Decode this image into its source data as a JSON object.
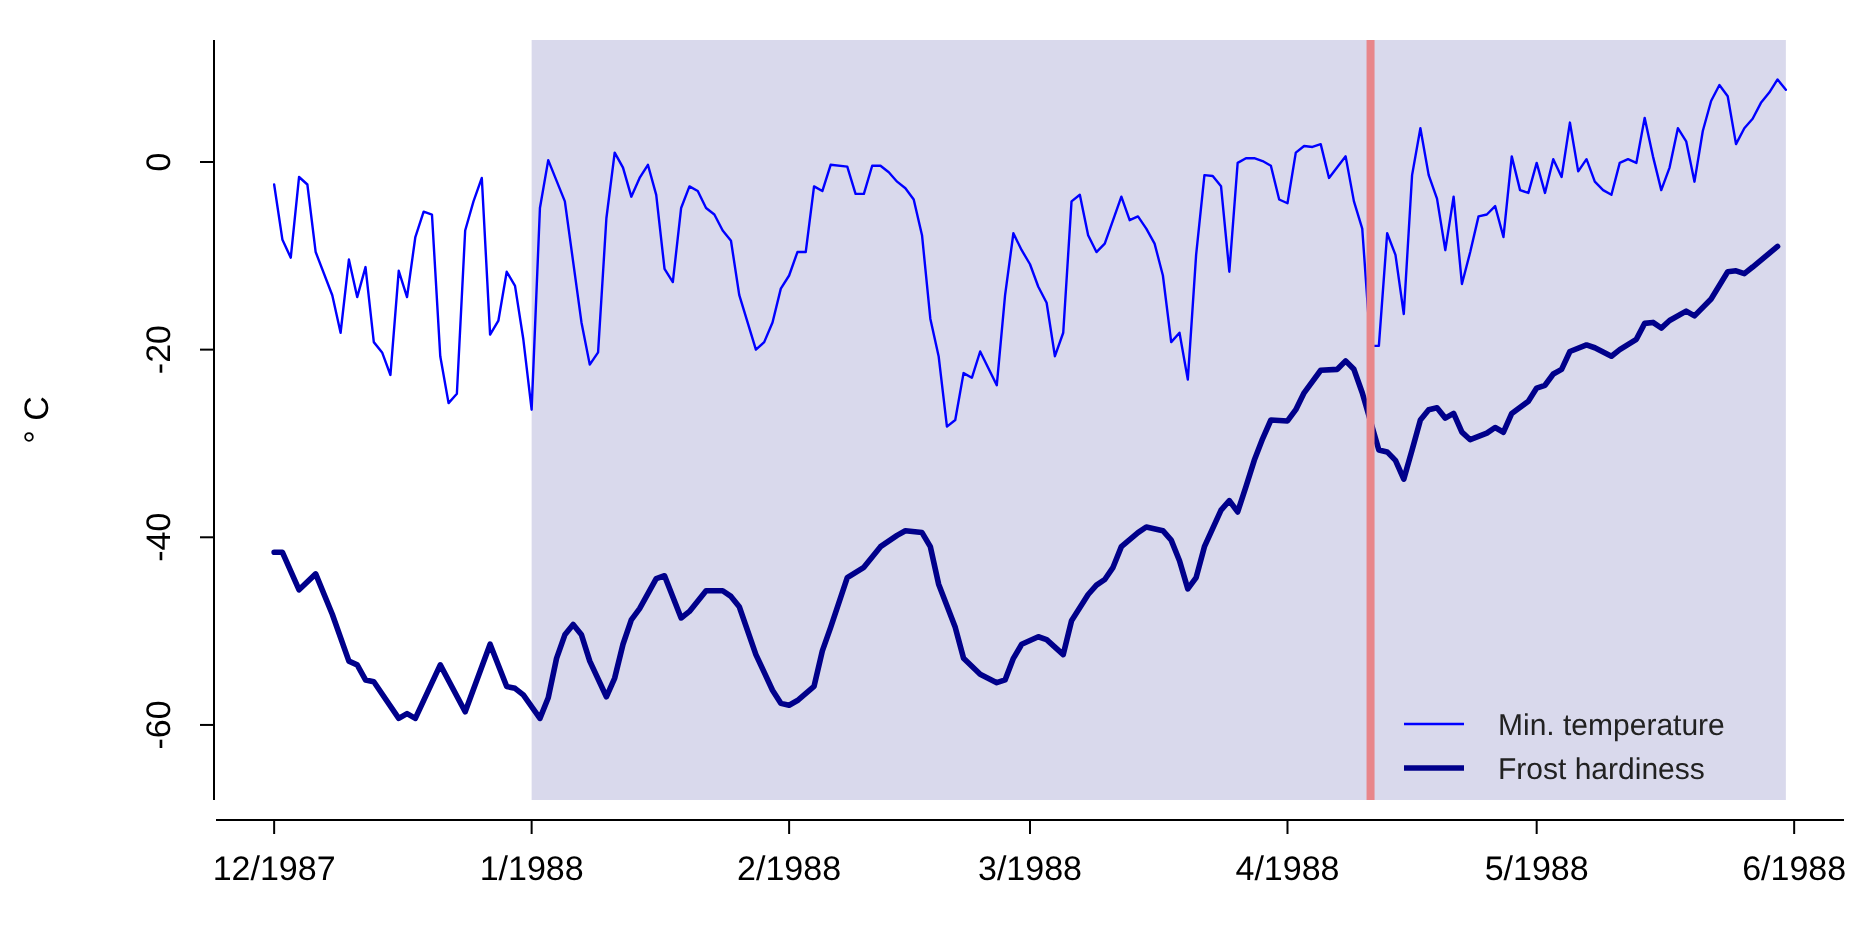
{
  "chart_data": {
    "type": "line",
    "ylabel": "° C",
    "xlim": [
      "1987-11-24",
      "1988-06-07"
    ],
    "ylim": [
      -68,
      13
    ],
    "xticks": [
      {
        "value": "1987-12-01",
        "label": "12/1987"
      },
      {
        "value": "1988-01-01",
        "label": "1/1988"
      },
      {
        "value": "1988-02-01",
        "label": "2/1988"
      },
      {
        "value": "1988-03-01",
        "label": "3/1988"
      },
      {
        "value": "1988-04-01",
        "label": "4/1988"
      },
      {
        "value": "1988-05-01",
        "label": "5/1988"
      },
      {
        "value": "1988-06-01",
        "label": "6/1988"
      }
    ],
    "yticks": [
      -60,
      -40,
      -20,
      0
    ],
    "bands": [
      {
        "axis": "x",
        "from": "1988-01-01",
        "to": "1988-05-31",
        "color": "#d9d9ec"
      }
    ],
    "ref_lines": [
      {
        "axis": "x",
        "value": "1988-04-11",
        "color": "#e8868a"
      }
    ],
    "legend": "bottom right",
    "series": [
      {
        "name": "Min. temperature",
        "color": "#0000ff",
        "x": [
          "1987-12-01",
          "1987-12-02",
          "1987-12-03",
          "1987-12-04",
          "1987-12-05",
          "1987-12-06",
          "1987-12-08",
          "1987-12-09",
          "1987-12-10",
          "1987-12-11",
          "1987-12-12",
          "1987-12-13",
          "1987-12-14",
          "1987-12-15",
          "1987-12-16",
          "1987-12-17",
          "1987-12-18",
          "1987-12-19",
          "1987-12-20",
          "1987-12-21",
          "1987-12-22",
          "1987-12-23",
          "1987-12-24",
          "1987-12-25",
          "1987-12-26",
          "1987-12-27",
          "1987-12-28",
          "1987-12-29",
          "1987-12-30",
          "1987-12-31",
          "1988-01-01",
          "1988-01-02",
          "1988-01-03",
          "1988-01-05",
          "1988-01-07",
          "1988-01-08",
          "1988-01-09",
          "1988-01-10",
          "1988-01-11",
          "1988-01-12",
          "1988-01-13",
          "1988-01-14",
          "1988-01-15",
          "1988-01-16",
          "1988-01-17",
          "1988-01-18",
          "1988-01-19",
          "1988-01-20",
          "1988-01-21",
          "1988-01-22",
          "1988-01-23",
          "1988-01-24",
          "1988-01-25",
          "1988-01-26",
          "1988-01-28",
          "1988-01-29",
          "1988-01-30",
          "1988-01-31",
          "1988-02-01",
          "1988-02-02",
          "1988-02-03",
          "1988-02-04",
          "1988-02-05",
          "1988-02-06",
          "1988-02-08",
          "1988-02-09",
          "1988-02-10",
          "1988-02-11",
          "1988-02-12",
          "1988-02-13",
          "1988-02-14",
          "1988-02-15",
          "1988-02-16",
          "1988-02-17",
          "1988-02-18",
          "1988-02-19",
          "1988-02-20",
          "1988-02-21",
          "1988-02-22",
          "1988-02-23",
          "1988-02-24",
          "1988-02-26",
          "1988-02-27",
          "1988-02-28",
          "1988-02-29",
          "1988-03-01",
          "1988-03-02",
          "1988-03-03",
          "1988-03-04",
          "1988-03-05",
          "1988-03-06",
          "1988-03-07",
          "1988-03-08",
          "1988-03-09",
          "1988-03-10",
          "1988-03-12",
          "1988-03-13",
          "1988-03-14",
          "1988-03-15",
          "1988-03-16",
          "1988-03-17",
          "1988-03-18",
          "1988-03-19",
          "1988-03-20",
          "1988-03-21",
          "1988-03-22",
          "1988-03-23",
          "1988-03-24",
          "1988-03-25",
          "1988-03-26",
          "1988-03-27",
          "1988-03-28",
          "1988-03-29",
          "1988-03-30",
          "1988-03-31",
          "1988-04-01",
          "1988-04-02",
          "1988-04-03",
          "1988-04-04",
          "1988-04-05",
          "1988-04-06",
          "1988-04-08",
          "1988-04-09",
          "1988-04-10",
          "1988-04-11",
          "1988-04-12",
          "1988-04-13",
          "1988-04-14",
          "1988-04-15",
          "1988-04-16",
          "1988-04-17",
          "1988-04-18",
          "1988-04-19",
          "1988-04-20",
          "1988-04-21",
          "1988-04-22",
          "1988-04-23",
          "1988-04-24",
          "1988-04-25",
          "1988-04-26",
          "1988-04-27",
          "1988-04-28",
          "1988-04-29",
          "1988-04-30",
          "1988-05-01",
          "1988-05-02",
          "1988-05-03",
          "1988-05-04",
          "1988-05-05",
          "1988-05-06",
          "1988-05-07",
          "1988-05-08",
          "1988-05-09",
          "1988-05-10",
          "1988-05-11",
          "1988-05-12",
          "1988-05-13",
          "1988-05-14",
          "1988-05-15",
          "1988-05-16",
          "1988-05-17",
          "1988-05-18",
          "1988-05-19",
          "1988-05-20",
          "1988-05-21",
          "1988-05-22",
          "1988-05-23",
          "1988-05-24",
          "1988-05-25",
          "1988-05-26",
          "1988-05-27",
          "1988-05-28",
          "1988-05-29",
          "1988-05-30",
          "1988-05-31"
        ],
        "values": [
          -2.4,
          -8.3,
          -10.2,
          -1.6,
          -2.4,
          -9.6,
          -14.2,
          -18.2,
          -10.4,
          -14.4,
          -11.2,
          -19.2,
          -20.3,
          -22.7,
          -11.6,
          -14.4,
          -8.0,
          -5.3,
          -5.6,
          -20.7,
          -25.7,
          -24.7,
          -7.3,
          -4.2,
          -1.7,
          -18.4,
          -16.9,
          -11.7,
          -13.2,
          -18.9,
          -26.4,
          -4.9,
          0.2,
          -4.2,
          -17.1,
          -21.6,
          -20.3,
          -6.0,
          1.0,
          -0.6,
          -3.7,
          -1.7,
          -0.3,
          -3.5,
          -11.4,
          -12.8,
          -4.9,
          -2.6,
          -3.1,
          -4.9,
          -5.6,
          -7.3,
          -8.4,
          -14.2,
          -20.0,
          -19.2,
          -17.1,
          -13.5,
          -12.1,
          -9.6,
          -9.6,
          -2.6,
          -3.1,
          -0.3,
          -0.5,
          -3.4,
          -3.4,
          -0.4,
          -0.4,
          -1.1,
          -2.1,
          -2.8,
          -4.0,
          -7.8,
          -16.7,
          -20.7,
          -28.2,
          -27.5,
          -22.5,
          -23.0,
          -20.2,
          -23.8,
          -14.2,
          -7.6,
          -9.4,
          -10.9,
          -13.3,
          -15.0,
          -20.7,
          -18.2,
          -4.2,
          -3.5,
          -7.8,
          -9.6,
          -8.7,
          -3.7,
          -6.2,
          -5.8,
          -7.1,
          -8.7,
          -12.1,
          -19.2,
          -18.2,
          -23.2,
          -9.9,
          -1.4,
          -1.5,
          -2.6,
          -11.7,
          -0.1,
          0.4,
          0.4,
          0.1,
          -0.4,
          -4.0,
          -4.4,
          1.0,
          1.7,
          1.6,
          1.9,
          -1.7,
          0.6,
          -4.2,
          -7.1,
          -19.6,
          -19.6,
          -7.6,
          -9.9,
          -16.2,
          -1.4,
          3.6,
          -1.4,
          -3.9,
          -9.4,
          -3.7,
          -13.0,
          -9.6,
          -5.8,
          -5.6,
          -4.7,
          -8.0,
          0.6,
          -3.0,
          -3.3,
          -0.1,
          -3.3,
          0.3,
          -1.6,
          4.2,
          -1.0,
          0.3,
          -2.1,
          -3.0,
          -3.5,
          -0.1,
          0.3,
          -0.1,
          4.7,
          0.6,
          -3.0,
          -0.6,
          3.6,
          2.2,
          -2.1,
          3.3,
          6.5,
          8.2,
          7.0,
          1.9,
          3.6,
          4.6,
          6.3,
          7.4,
          8.8,
          7.7
        ]
      },
      {
        "name": "Frost hardiness",
        "color": "#00008b",
        "x": [
          "1987-12-01",
          "1987-12-02",
          "1987-12-04",
          "1987-12-06",
          "1987-12-08",
          "1987-12-10",
          "1987-12-11",
          "1987-12-12",
          "1987-12-13",
          "1987-12-16",
          "1987-12-17",
          "1987-12-18",
          "1987-12-21",
          "1987-12-24",
          "1987-12-27",
          "1987-12-29",
          "1987-12-30",
          "1987-12-31",
          "1988-01-02",
          "1988-01-03",
          "1988-01-04",
          "1988-01-05",
          "1988-01-06",
          "1988-01-07",
          "1988-01-08",
          "1988-01-10",
          "1988-01-11",
          "1988-01-12",
          "1988-01-13",
          "1988-01-14",
          "1988-01-16",
          "1988-01-17",
          "1988-01-19",
          "1988-01-20",
          "1988-01-22",
          "1988-01-24",
          "1988-01-25",
          "1988-01-26",
          "1988-01-28",
          "1988-01-30",
          "1988-01-31",
          "1988-02-01",
          "1988-02-02",
          "1988-02-04",
          "1988-02-05",
          "1988-02-06",
          "1988-02-08",
          "1988-02-10",
          "1988-02-12",
          "1988-02-14",
          "1988-02-15",
          "1988-02-17",
          "1988-02-18",
          "1988-02-19",
          "1988-02-21",
          "1988-02-22",
          "1988-02-24",
          "1988-02-26",
          "1988-02-27",
          "1988-02-28",
          "1988-02-29",
          "1988-03-02",
          "1988-03-03",
          "1988-03-05",
          "1988-03-06",
          "1988-03-08",
          "1988-03-09",
          "1988-03-10",
          "1988-03-11",
          "1988-03-12",
          "1988-03-14",
          "1988-03-15",
          "1988-03-17",
          "1988-03-18",
          "1988-03-19",
          "1988-03-20",
          "1988-03-21",
          "1988-03-22",
          "1988-03-24",
          "1988-03-25",
          "1988-03-26",
          "1988-03-27",
          "1988-03-28",
          "1988-03-29",
          "1988-03-30",
          "1988-04-01",
          "1988-04-02",
          "1988-04-03",
          "1988-04-05",
          "1988-04-07",
          "1988-04-08",
          "1988-04-09",
          "1988-04-10",
          "1988-04-12",
          "1988-04-13",
          "1988-04-14",
          "1988-04-15",
          "1988-04-16",
          "1988-04-17",
          "1988-04-18",
          "1988-04-19",
          "1988-04-20",
          "1988-04-21",
          "1988-04-22",
          "1988-04-23",
          "1988-04-25",
          "1988-04-26",
          "1988-04-27",
          "1988-04-28",
          "1988-04-30",
          "1988-05-01",
          "1988-05-02",
          "1988-05-03",
          "1988-05-04",
          "1988-05-05",
          "1988-05-07",
          "1988-05-08",
          "1988-05-10",
          "1988-05-11",
          "1988-05-13",
          "1988-05-14",
          "1988-05-15",
          "1988-05-16",
          "1988-05-17",
          "1988-05-19",
          "1988-05-20",
          "1988-05-22",
          "1988-05-24",
          "1988-05-25",
          "1988-05-26",
          "1988-05-27",
          "1988-05-30"
        ],
        "values": [
          -41.6,
          -41.6,
          -45.6,
          -43.9,
          -48.2,
          -53.2,
          -53.6,
          -55.2,
          -55.4,
          -59.3,
          -58.8,
          -59.3,
          -53.6,
          -58.6,
          -51.4,
          -55.9,
          -56.1,
          -56.8,
          -59.3,
          -57.1,
          -52.9,
          -50.4,
          -49.3,
          -50.4,
          -53.2,
          -57.0,
          -55.0,
          -51.4,
          -48.8,
          -47.6,
          -44.4,
          -44.1,
          -48.6,
          -47.9,
          -45.7,
          -45.7,
          -46.3,
          -47.4,
          -52.5,
          -56.3,
          -57.7,
          -57.9,
          -57.4,
          -55.9,
          -52.1,
          -49.6,
          -44.3,
          -43.2,
          -41.0,
          -39.8,
          -39.3,
          -39.5,
          -41.0,
          -45.0,
          -49.6,
          -52.9,
          -54.6,
          -55.5,
          -55.2,
          -52.9,
          -51.4,
          -50.6,
          -50.9,
          -52.5,
          -48.9,
          -46.1,
          -45.1,
          -44.5,
          -43.2,
          -41.0,
          -39.5,
          -38.9,
          -39.3,
          -40.3,
          -42.5,
          -45.5,
          -44.3,
          -41.0,
          -37.1,
          -36.1,
          -37.3,
          -34.6,
          -31.8,
          -29.5,
          -27.5,
          -27.6,
          -26.4,
          -24.6,
          -22.2,
          -22.1,
          -21.2,
          -22.1,
          -24.6,
          -30.7,
          -30.9,
          -31.8,
          -33.8,
          -30.7,
          -27.5,
          -26.4,
          -26.2,
          -27.3,
          -26.8,
          -28.8,
          -29.6,
          -28.9,
          -28.3,
          -28.8,
          -26.8,
          -25.5,
          -24.1,
          -23.8,
          -22.6,
          -22.1,
          -20.2,
          -19.5,
          -19.8,
          -20.7,
          -20.0,
          -18.9,
          -17.2,
          -17.1,
          -17.7,
          -16.9,
          -15.9,
          -16.4,
          -14.6,
          -11.7,
          -11.6,
          -11.9,
          -11.2,
          -9.0
        ]
      }
    ]
  }
}
